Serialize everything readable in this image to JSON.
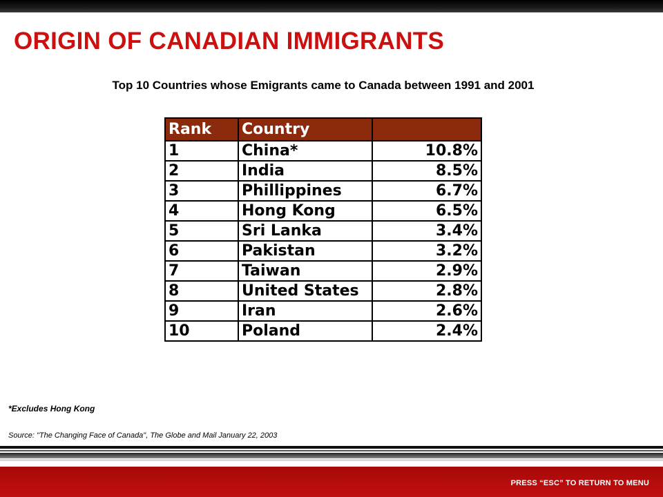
{
  "title": "ORIGIN OF CANADIAN IMMIGRANTS",
  "subtitle": "Top 10 Countries whose Emigrants came to Canada between 1991 and 2001",
  "table": {
    "headers": [
      "Rank",
      "Country",
      ""
    ],
    "rows": [
      {
        "rank": "1",
        "country": "China*",
        "pct": "10.8%"
      },
      {
        "rank": "2",
        "country": "India",
        "pct": "8.5%"
      },
      {
        "rank": "3",
        "country": "Phillippines",
        "pct": "6.7%"
      },
      {
        "rank": "4",
        "country": "Hong Kong",
        "pct": "6.5%"
      },
      {
        "rank": "5",
        "country": "Sri Lanka",
        "pct": "3.4%"
      },
      {
        "rank": "6",
        "country": "Pakistan",
        "pct": "3.2%"
      },
      {
        "rank": "7",
        "country": "Taiwan",
        "pct": "2.9%"
      },
      {
        "rank": "8",
        "country": "United States",
        "pct": "2.8%"
      },
      {
        "rank": "9",
        "country": "Iran",
        "pct": "2.6%"
      },
      {
        "rank": "10",
        "country": "Poland",
        "pct": "2.4%"
      }
    ]
  },
  "footnote": "*Excludes Hong Kong",
  "source": "Source: \"The Changing Face of Canada\",  The Globe and Mail January 22, 2003",
  "footer": {
    "esc_hint": "PRESS “ESC” TO RETURN TO MENU"
  },
  "colors": {
    "title": "#cc1010",
    "header_bg": "#8c2a0e",
    "footer_bg": "#b00c0c"
  }
}
